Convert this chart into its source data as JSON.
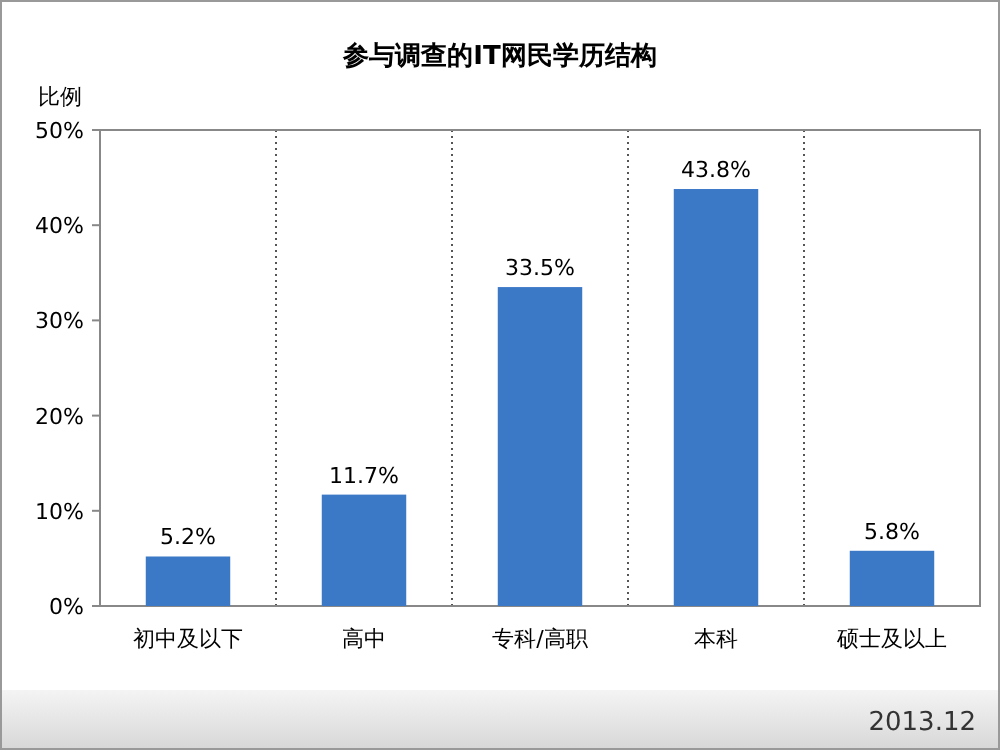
{
  "chart_data": {
    "type": "bar",
    "title": "参与调查的IT网民学历结构",
    "ylabel": "比例",
    "categories": [
      "初中及以下",
      "高中",
      "专科/高职",
      "本科",
      "硕士及以上"
    ],
    "values": [
      5.2,
      11.7,
      33.5,
      43.8,
      5.8
    ],
    "value_labels": [
      "5.2%",
      "11.7%",
      "33.5%",
      "43.8%",
      "5.8%"
    ],
    "color": "#3b78c6",
    "ylim": [
      0,
      50
    ],
    "yticks": [
      {
        "value": 0,
        "label": "0%"
      },
      {
        "value": 10,
        "label": "10%"
      },
      {
        "value": 20,
        "label": "20%"
      },
      {
        "value": 30,
        "label": "30%"
      },
      {
        "value": 40,
        "label": "40%"
      },
      {
        "value": 50,
        "label": "50%"
      }
    ],
    "grid": "x",
    "annotations": [
      "2013.12"
    ]
  }
}
